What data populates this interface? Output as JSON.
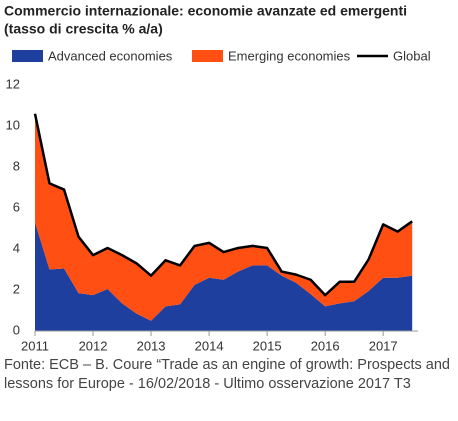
{
  "chart_data": {
    "type": "area",
    "stacked": true,
    "title": "Commercio internazionale: economie avanzate ed emergenti",
    "subtitle": "(tasso di crescita % a/a)",
    "x": [
      2011,
      2011.25,
      2011.5,
      2011.75,
      2012,
      2012.25,
      2012.5,
      2012.75,
      2013,
      2013.25,
      2013.5,
      2013.75,
      2014,
      2014.25,
      2014.5,
      2014.75,
      2015,
      2015.25,
      2015.5,
      2015.75,
      2016,
      2016.25,
      2016.5,
      2016.75,
      2017,
      2017.25,
      2017.5
    ],
    "series": [
      {
        "name": "Advanced economies",
        "color": "#1f3f9e",
        "values": [
          5.3,
          3.0,
          3.05,
          1.85,
          1.75,
          2.05,
          1.35,
          0.85,
          0.5,
          1.2,
          1.3,
          2.25,
          2.6,
          2.5,
          2.9,
          3.2,
          3.2,
          2.7,
          2.35,
          1.8,
          1.2,
          1.35,
          1.45,
          1.95,
          2.6,
          2.6,
          2.7
        ]
      },
      {
        "name": "Emerging economies",
        "color": "#ff4f12",
        "values": [
          5.3,
          4.2,
          3.85,
          2.75,
          1.95,
          2.0,
          2.35,
          2.45,
          2.2,
          2.25,
          1.9,
          1.9,
          1.7,
          1.35,
          1.15,
          0.95,
          0.85,
          0.2,
          0.4,
          0.7,
          0.55,
          1.05,
          0.95,
          1.55,
          2.6,
          2.25,
          2.65
        ]
      },
      {
        "name": "Global",
        "color": "#000000",
        "type": "line",
        "values": [
          10.6,
          7.2,
          6.9,
          4.6,
          3.7,
          4.05,
          3.7,
          3.3,
          2.7,
          3.45,
          3.2,
          4.15,
          4.3,
          3.85,
          4.05,
          4.15,
          4.05,
          2.9,
          2.75,
          2.5,
          1.75,
          2.4,
          2.4,
          3.5,
          5.2,
          4.85,
          5.35
        ]
      }
    ],
    "xlim": [
      2011,
      2017.6
    ],
    "xticks": [
      2011,
      2012,
      2013,
      2014,
      2015,
      2016,
      2017
    ],
    "ylim": [
      0,
      12
    ],
    "yticks": [
      0,
      2,
      4,
      6,
      8,
      10,
      12
    ],
    "source": "Fonte: ECB – B. Coure “Trade as an engine of growth: Prospects and lessons for Europe - 16/02/2018 - Ultimo osservazione 2017 T3"
  }
}
